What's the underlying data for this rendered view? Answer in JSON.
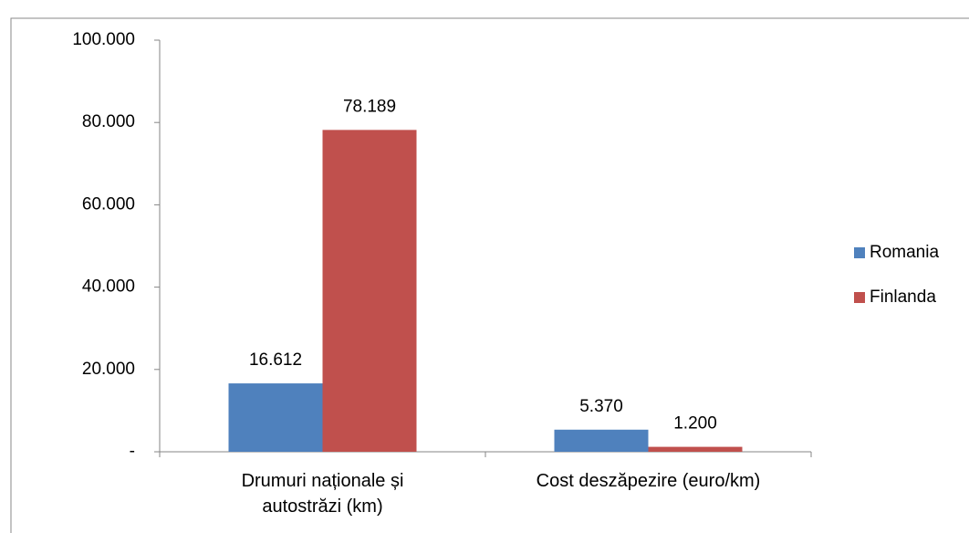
{
  "chart_data": {
    "type": "bar",
    "categories": [
      "Drumuri naționale și autostrăzi (km)",
      "Cost deszăpezire (euro/km)"
    ],
    "series": [
      {
        "name": "Romania",
        "color": "#4f81bd",
        "values": [
          16612,
          5370
        ],
        "value_labels": [
          "16.612",
          "5.370"
        ]
      },
      {
        "name": "Finlanda",
        "color": "#c0504d",
        "values": [
          78189,
          1200
        ],
        "value_labels": [
          "78.189",
          "1.200"
        ]
      }
    ],
    "ylim": [
      0,
      100000
    ],
    "yticks": [
      {
        "value": 0,
        "label": "-"
      },
      {
        "value": 20000,
        "label": "20.000"
      },
      {
        "value": 40000,
        "label": "40.000"
      },
      {
        "value": 60000,
        "label": "60.000"
      },
      {
        "value": 80000,
        "label": "80.000"
      },
      {
        "value": 100000,
        "label": "100.000"
      }
    ],
    "legend": "right",
    "grid": false
  }
}
